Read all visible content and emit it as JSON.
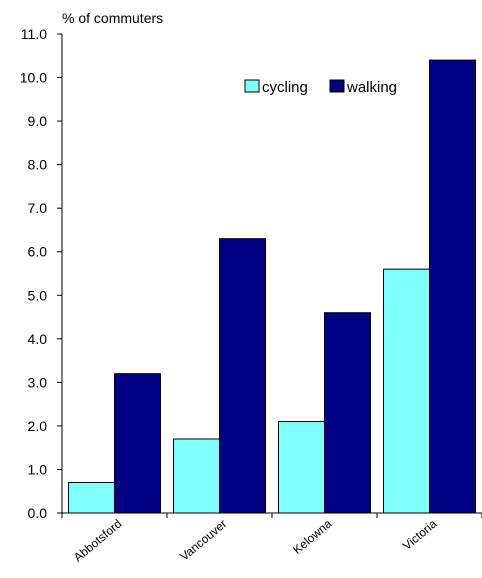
{
  "chart_data": {
    "type": "bar",
    "ylabel": "% of commuters",
    "categories": [
      "Abbotsford",
      "Vancouver",
      "Kelowna",
      "Victoria"
    ],
    "series": [
      {
        "name": "cycling",
        "values": [
          0.7,
          1.7,
          2.1,
          5.6
        ],
        "color": "#80ffff"
      },
      {
        "name": "walking",
        "values": [
          3.2,
          6.3,
          4.6,
          10.4
        ],
        "color": "#000080"
      }
    ],
    "ylim": [
      0,
      11
    ],
    "yticks": [
      "0.0",
      "1.0",
      "2.0",
      "3.0",
      "4.0",
      "5.0",
      "6.0",
      "7.0",
      "8.0",
      "9.0",
      "10.0",
      "11.0"
    ],
    "grid": false,
    "legend_position": "top-right"
  }
}
